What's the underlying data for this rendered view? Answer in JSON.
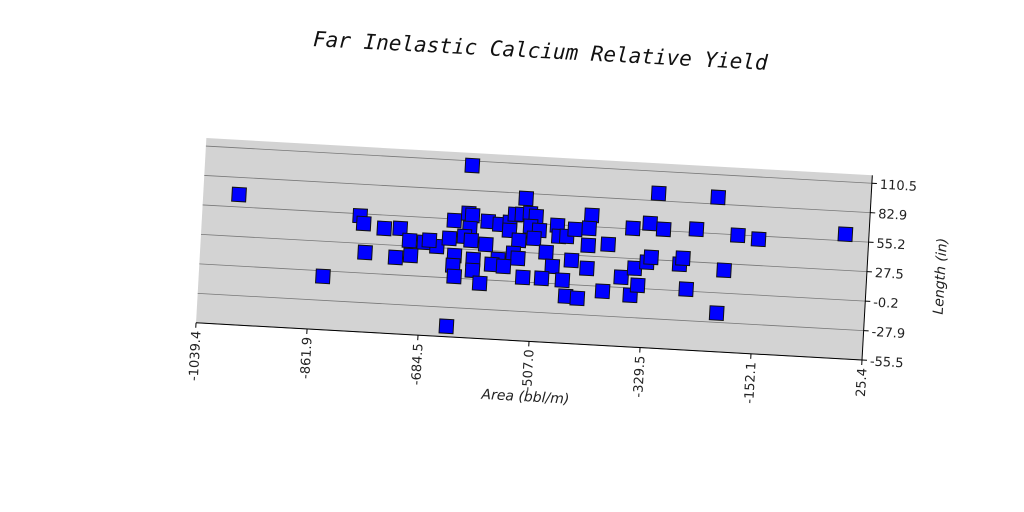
{
  "chart_data": {
    "type": "scatter",
    "title": "Far Inelastic Calcium Relative Yield",
    "x_label": "Area (bbl/m)",
    "y_label": "Length (in)",
    "x": [
      -982.3,
      -613.0,
      -787.4,
      -781.0,
      -747.8,
      -722.4,
      -706.5,
      -682.8,
      -662.2,
      -643.1,
      -636.8,
      -614.6,
      -608.3,
      -611.4,
      -619.4,
      -582.9,
      -563.9,
      -548.0,
      -540.1,
      -524.3,
      -529.0,
      -516.3,
      -506.8,
      -514.8,
      -500.5,
      -548.0,
      -532.2,
      -508.4,
      -472.0,
      -468.8,
      -456.1,
      -443.4,
      -418.1,
      -421.2,
      -421.2,
      -389.5,
      -351.5,
      -313.5,
      -324.6,
      -302.4,
      -250.1,
      -218.4,
      -183.5,
      -150.2,
      -12.3,
      -776.3,
      -727.2,
      -703.4,
      -633.6,
      -635.2,
      -603.5,
      -584.5,
      -563.9,
      -573.4,
      -540.1,
      -532.2,
      -487.8,
      -476.7,
      -446.6,
      -421.2,
      -632.1,
      -603.5,
      -590.8,
      -554.4,
      -522.7,
      -492.6,
      -459.3,
      -452.9,
      -433.9,
      -394.3,
      -365.8,
      -349.9,
      -345.2,
      -326.1,
      -319.8,
      -338.8,
      -273.8,
      -269.1,
      -261.2,
      -202.5,
      -841.3,
      -640.0,
      -210.4,
      -608.3,
      -674.8
    ],
    "values": [
      66.8,
      106.2,
      53.2,
      46.2,
      42.7,
      43.5,
      32.7,
      31.7,
      28.6,
      36.8,
      53.8,
      61.2,
      59.5,
      47.2,
      39.4,
      54.7,
      52.5,
      54.9,
      62.7,
      78.2,
      63.0,
      64.4,
      61.9,
      52.3,
      49.0,
      47.4,
      38.6,
      41.2,
      54.6,
      44.4,
      44.8,
      51.8,
      65.8,
      53.5,
      37.5,
      39.5,
      55.8,
      89.9,
      61.3,
      56.5,
      58.3,
      89.3,
      54.8,
      52.2,
      61.4,
      19.2,
      16.1,
      18.8,
      21.0,
      11.6,
      18.3,
      33.0,
      19.7,
      14.6,
      26.1,
      21.7,
      28.8,
      15.9,
      22.6,
      15.9,
      1.4,
      8.0,
      -3.7,
      13.4,
      4.1,
      4.2,
      3.5,
      -11.3,
      -12.6,
      -4.7,
      9.4,
      -7.0,
      18.5,
      24.8,
      29.6,
      2.7,
      24.6,
      30.4,
      1.6,
      21.3,
      -5.4,
      -45.7,
      -19.2,
      36.0,
      34.0
    ],
    "color": "#0000ff",
    "xlim": [
      -1039.4,
      25.4
    ],
    "xticks": [
      -1039.4,
      -861.9,
      -684.5,
      {
        "value": -507,
        "label": "-507.0"
      },
      -329.5,
      -152.1,
      25.4
    ],
    "ylim": [
      -55.5,
      110.5
    ],
    "yticks": [
      -55.5,
      -27.9,
      -0.2,
      27.5,
      55.2,
      82.9,
      110.5
    ],
    "grid": true
  }
}
